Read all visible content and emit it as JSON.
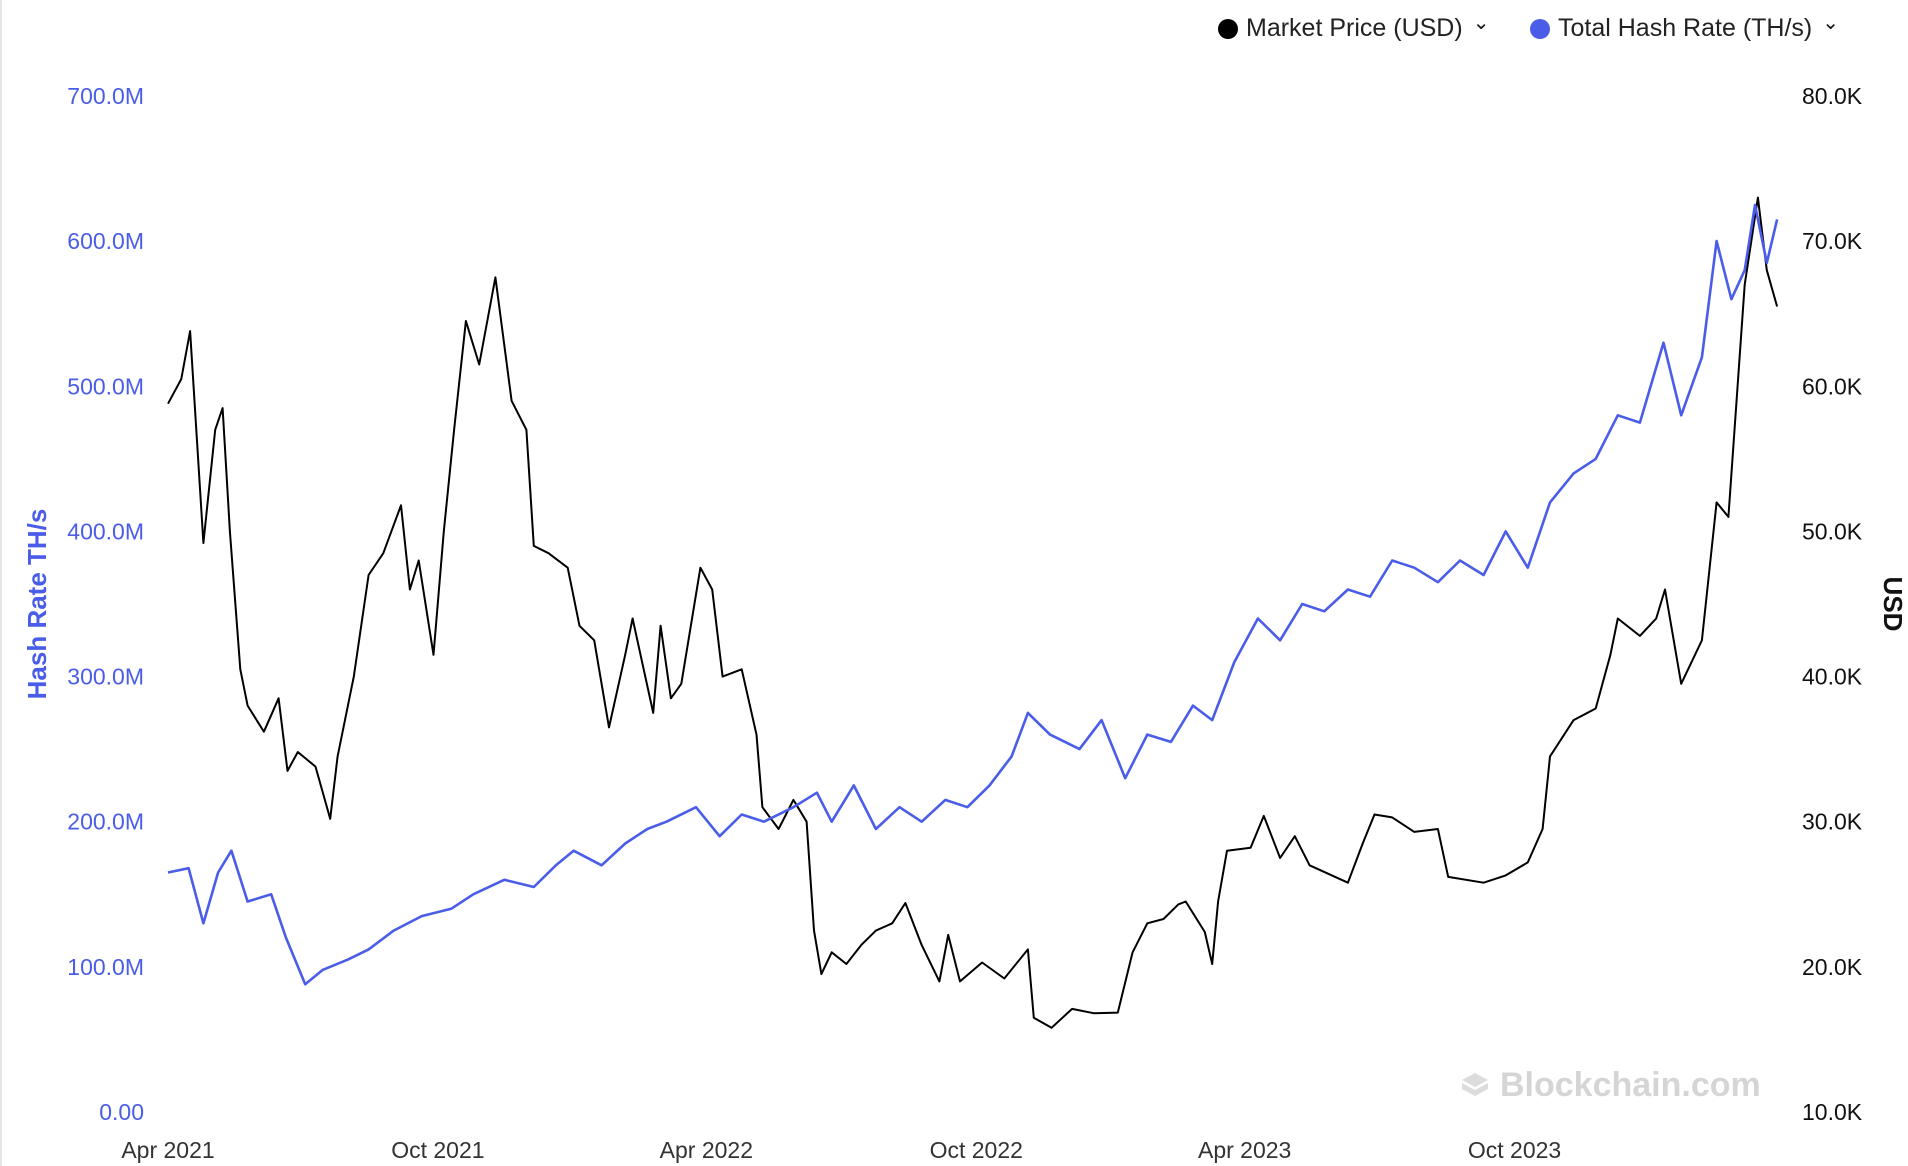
{
  "legend": {
    "price_label": "Market Price (USD)",
    "hash_label": "Total Hash Rate (TH/s)"
  },
  "colors": {
    "price": "#000000",
    "hash": "#4a5de8",
    "left_axis_text": "#4a5de8",
    "right_axis_text": "#111111"
  },
  "icons": {
    "legend_toggle": "chevron-down-icon",
    "watermark": "blockchain-logo-icon"
  },
  "watermark": "Blockchain.com",
  "chart_data": {
    "type": "line",
    "ylabel_left": "Hash Rate TH/s",
    "ylabel_right": "USD",
    "y_left_lim": [
      0,
      700000000
    ],
    "y_right_lim": [
      10000,
      80000
    ],
    "y_left_ticks": [
      "0.00",
      "100.0M",
      "200.0M",
      "300.0M",
      "400.0M",
      "500.0M",
      "600.0M",
      "700.0M"
    ],
    "y_right_ticks": [
      "10.0K",
      "20.0K",
      "30.0K",
      "40.0K",
      "50.0K",
      "60.0K",
      "70.0K",
      "80.0K"
    ],
    "x_ticks": [
      "Apr 2021",
      "Oct 2021",
      "Apr 2022",
      "Oct 2022",
      "Apr 2023",
      "Oct 2023"
    ],
    "x_tick_dates": [
      "2021-04-01",
      "2021-10-01",
      "2022-04-01",
      "2022-10-01",
      "2023-04-01",
      "2023-10-01"
    ],
    "x_lim": [
      "2021-04-01",
      "2024-03-31"
    ],
    "grid": false,
    "legend_position": "top-right",
    "series": [
      {
        "name": "Market Price (USD)",
        "axis": "right",
        "color": "#000000",
        "points": [
          [
            "2021-04-01",
            58800
          ],
          [
            "2021-04-10",
            60500
          ],
          [
            "2021-04-16",
            63800
          ],
          [
            "2021-04-25",
            49200
          ],
          [
            "2021-05-03",
            57000
          ],
          [
            "2021-05-08",
            58500
          ],
          [
            "2021-05-13",
            50000
          ],
          [
            "2021-05-20",
            40500
          ],
          [
            "2021-05-25",
            38000
          ],
          [
            "2021-06-05",
            36200
          ],
          [
            "2021-06-15",
            38500
          ],
          [
            "2021-06-21",
            33500
          ],
          [
            "2021-06-28",
            34800
          ],
          [
            "2021-07-10",
            33800
          ],
          [
            "2021-07-20",
            30200
          ],
          [
            "2021-07-25",
            34500
          ],
          [
            "2021-08-05",
            40000
          ],
          [
            "2021-08-15",
            47000
          ],
          [
            "2021-08-25",
            48500
          ],
          [
            "2021-09-06",
            51800
          ],
          [
            "2021-09-12",
            46000
          ],
          [
            "2021-09-18",
            48000
          ],
          [
            "2021-09-28",
            41500
          ],
          [
            "2021-10-05",
            50000
          ],
          [
            "2021-10-12",
            57000
          ],
          [
            "2021-10-20",
            64500
          ],
          [
            "2021-10-29",
            61500
          ],
          [
            "2021-11-09",
            67500
          ],
          [
            "2021-11-20",
            59000
          ],
          [
            "2021-11-30",
            57000
          ],
          [
            "2021-12-05",
            49000
          ],
          [
            "2021-12-15",
            48500
          ],
          [
            "2021-12-28",
            47500
          ],
          [
            "2022-01-05",
            43500
          ],
          [
            "2022-01-15",
            42500
          ],
          [
            "2022-01-25",
            36500
          ],
          [
            "2022-02-05",
            41500
          ],
          [
            "2022-02-10",
            44000
          ],
          [
            "2022-02-24",
            37500
          ],
          [
            "2022-03-01",
            43500
          ],
          [
            "2022-03-08",
            38500
          ],
          [
            "2022-03-15",
            39500
          ],
          [
            "2022-03-28",
            47500
          ],
          [
            "2022-04-05",
            46000
          ],
          [
            "2022-04-12",
            40000
          ],
          [
            "2022-04-25",
            40500
          ],
          [
            "2022-05-05",
            36000
          ],
          [
            "2022-05-09",
            31000
          ],
          [
            "2022-05-20",
            29500
          ],
          [
            "2022-05-30",
            31500
          ],
          [
            "2022-06-08",
            30000
          ],
          [
            "2022-06-13",
            22500
          ],
          [
            "2022-06-18",
            19500
          ],
          [
            "2022-06-25",
            21000
          ],
          [
            "2022-07-05",
            20200
          ],
          [
            "2022-07-15",
            21500
          ],
          [
            "2022-07-25",
            22500
          ],
          [
            "2022-08-05",
            23000
          ],
          [
            "2022-08-14",
            24400
          ],
          [
            "2022-08-25",
            21500
          ],
          [
            "2022-09-06",
            19000
          ],
          [
            "2022-09-12",
            22200
          ],
          [
            "2022-09-20",
            19000
          ],
          [
            "2022-10-05",
            20300
          ],
          [
            "2022-10-20",
            19200
          ],
          [
            "2022-11-05",
            21200
          ],
          [
            "2022-11-09",
            16500
          ],
          [
            "2022-11-21",
            15800
          ],
          [
            "2022-12-05",
            17100
          ],
          [
            "2022-12-20",
            16800
          ],
          [
            "2023-01-05",
            16850
          ],
          [
            "2023-01-15",
            21000
          ],
          [
            "2023-01-25",
            23000
          ],
          [
            "2023-02-05",
            23300
          ],
          [
            "2023-02-15",
            24300
          ],
          [
            "2023-02-20",
            24500
          ],
          [
            "2023-03-05",
            22400
          ],
          [
            "2023-03-10",
            20200
          ],
          [
            "2023-03-14",
            24500
          ],
          [
            "2023-03-20",
            28000
          ],
          [
            "2023-04-05",
            28200
          ],
          [
            "2023-04-14",
            30400
          ],
          [
            "2023-04-25",
            27500
          ],
          [
            "2023-05-05",
            29000
          ],
          [
            "2023-05-15",
            27000
          ],
          [
            "2023-06-10",
            25800
          ],
          [
            "2023-06-20",
            28500
          ],
          [
            "2023-06-28",
            30500
          ],
          [
            "2023-07-10",
            30300
          ],
          [
            "2023-07-25",
            29300
          ],
          [
            "2023-08-10",
            29500
          ],
          [
            "2023-08-17",
            26200
          ],
          [
            "2023-09-10",
            25800
          ],
          [
            "2023-09-25",
            26300
          ],
          [
            "2023-10-10",
            27200
          ],
          [
            "2023-10-20",
            29500
          ],
          [
            "2023-10-25",
            34500
          ],
          [
            "2023-11-10",
            37000
          ],
          [
            "2023-11-25",
            37800
          ],
          [
            "2023-12-05",
            41500
          ],
          [
            "2023-12-10",
            44000
          ],
          [
            "2023-12-25",
            42800
          ],
          [
            "2024-01-05",
            44000
          ],
          [
            "2024-01-11",
            46000
          ],
          [
            "2024-01-22",
            39500
          ],
          [
            "2024-02-05",
            42500
          ],
          [
            "2024-02-15",
            52000
          ],
          [
            "2024-02-23",
            51000
          ],
          [
            "2024-03-05",
            67000
          ],
          [
            "2024-03-14",
            73000
          ],
          [
            "2024-03-20",
            68000
          ],
          [
            "2024-03-27",
            65500
          ]
        ]
      },
      {
        "name": "Total Hash Rate (TH/s)",
        "axis": "left",
        "color": "#4a5de8",
        "points": [
          [
            "2021-04-01",
            165000000
          ],
          [
            "2021-04-15",
            168000000
          ],
          [
            "2021-04-25",
            130000000
          ],
          [
            "2021-05-05",
            165000000
          ],
          [
            "2021-05-14",
            180000000
          ],
          [
            "2021-05-25",
            145000000
          ],
          [
            "2021-06-10",
            150000000
          ],
          [
            "2021-06-20",
            120000000
          ],
          [
            "2021-07-03",
            88000000
          ],
          [
            "2021-07-15",
            98000000
          ],
          [
            "2021-08-01",
            105000000
          ],
          [
            "2021-08-15",
            112000000
          ],
          [
            "2021-09-01",
            125000000
          ],
          [
            "2021-09-20",
            135000000
          ],
          [
            "2021-10-10",
            140000000
          ],
          [
            "2021-10-25",
            150000000
          ],
          [
            "2021-11-15",
            160000000
          ],
          [
            "2021-12-05",
            155000000
          ],
          [
            "2021-12-20",
            170000000
          ],
          [
            "2022-01-01",
            180000000
          ],
          [
            "2022-01-20",
            170000000
          ],
          [
            "2022-02-05",
            185000000
          ],
          [
            "2022-02-20",
            195000000
          ],
          [
            "2022-03-05",
            200000000
          ],
          [
            "2022-03-25",
            210000000
          ],
          [
            "2022-04-10",
            190000000
          ],
          [
            "2022-04-25",
            205000000
          ],
          [
            "2022-05-10",
            200000000
          ],
          [
            "2022-05-30",
            210000000
          ],
          [
            "2022-06-15",
            220000000
          ],
          [
            "2022-06-25",
            200000000
          ],
          [
            "2022-07-10",
            225000000
          ],
          [
            "2022-07-25",
            195000000
          ],
          [
            "2022-08-10",
            210000000
          ],
          [
            "2022-08-25",
            200000000
          ],
          [
            "2022-09-10",
            215000000
          ],
          [
            "2022-09-25",
            210000000
          ],
          [
            "2022-10-10",
            225000000
          ],
          [
            "2022-10-25",
            245000000
          ],
          [
            "2022-11-05",
            275000000
          ],
          [
            "2022-11-20",
            260000000
          ],
          [
            "2022-12-10",
            250000000
          ],
          [
            "2022-12-25",
            270000000
          ],
          [
            "2023-01-10",
            230000000
          ],
          [
            "2023-01-25",
            260000000
          ],
          [
            "2023-02-10",
            255000000
          ],
          [
            "2023-02-25",
            280000000
          ],
          [
            "2023-03-10",
            270000000
          ],
          [
            "2023-03-25",
            310000000
          ],
          [
            "2023-04-10",
            340000000
          ],
          [
            "2023-04-25",
            325000000
          ],
          [
            "2023-05-10",
            350000000
          ],
          [
            "2023-05-25",
            345000000
          ],
          [
            "2023-06-10",
            360000000
          ],
          [
            "2023-06-25",
            355000000
          ],
          [
            "2023-07-10",
            380000000
          ],
          [
            "2023-07-25",
            375000000
          ],
          [
            "2023-08-10",
            365000000
          ],
          [
            "2023-08-25",
            380000000
          ],
          [
            "2023-09-10",
            370000000
          ],
          [
            "2023-09-25",
            400000000
          ],
          [
            "2023-10-10",
            375000000
          ],
          [
            "2023-10-25",
            420000000
          ],
          [
            "2023-11-10",
            440000000
          ],
          [
            "2023-11-25",
            450000000
          ],
          [
            "2023-12-10",
            480000000
          ],
          [
            "2023-12-25",
            475000000
          ],
          [
            "2024-01-10",
            530000000
          ],
          [
            "2024-01-22",
            480000000
          ],
          [
            "2024-02-05",
            520000000
          ],
          [
            "2024-02-15",
            600000000
          ],
          [
            "2024-02-25",
            560000000
          ],
          [
            "2024-03-05",
            580000000
          ],
          [
            "2024-03-12",
            625000000
          ],
          [
            "2024-03-20",
            585000000
          ],
          [
            "2024-03-27",
            615000000
          ]
        ]
      }
    ]
  }
}
